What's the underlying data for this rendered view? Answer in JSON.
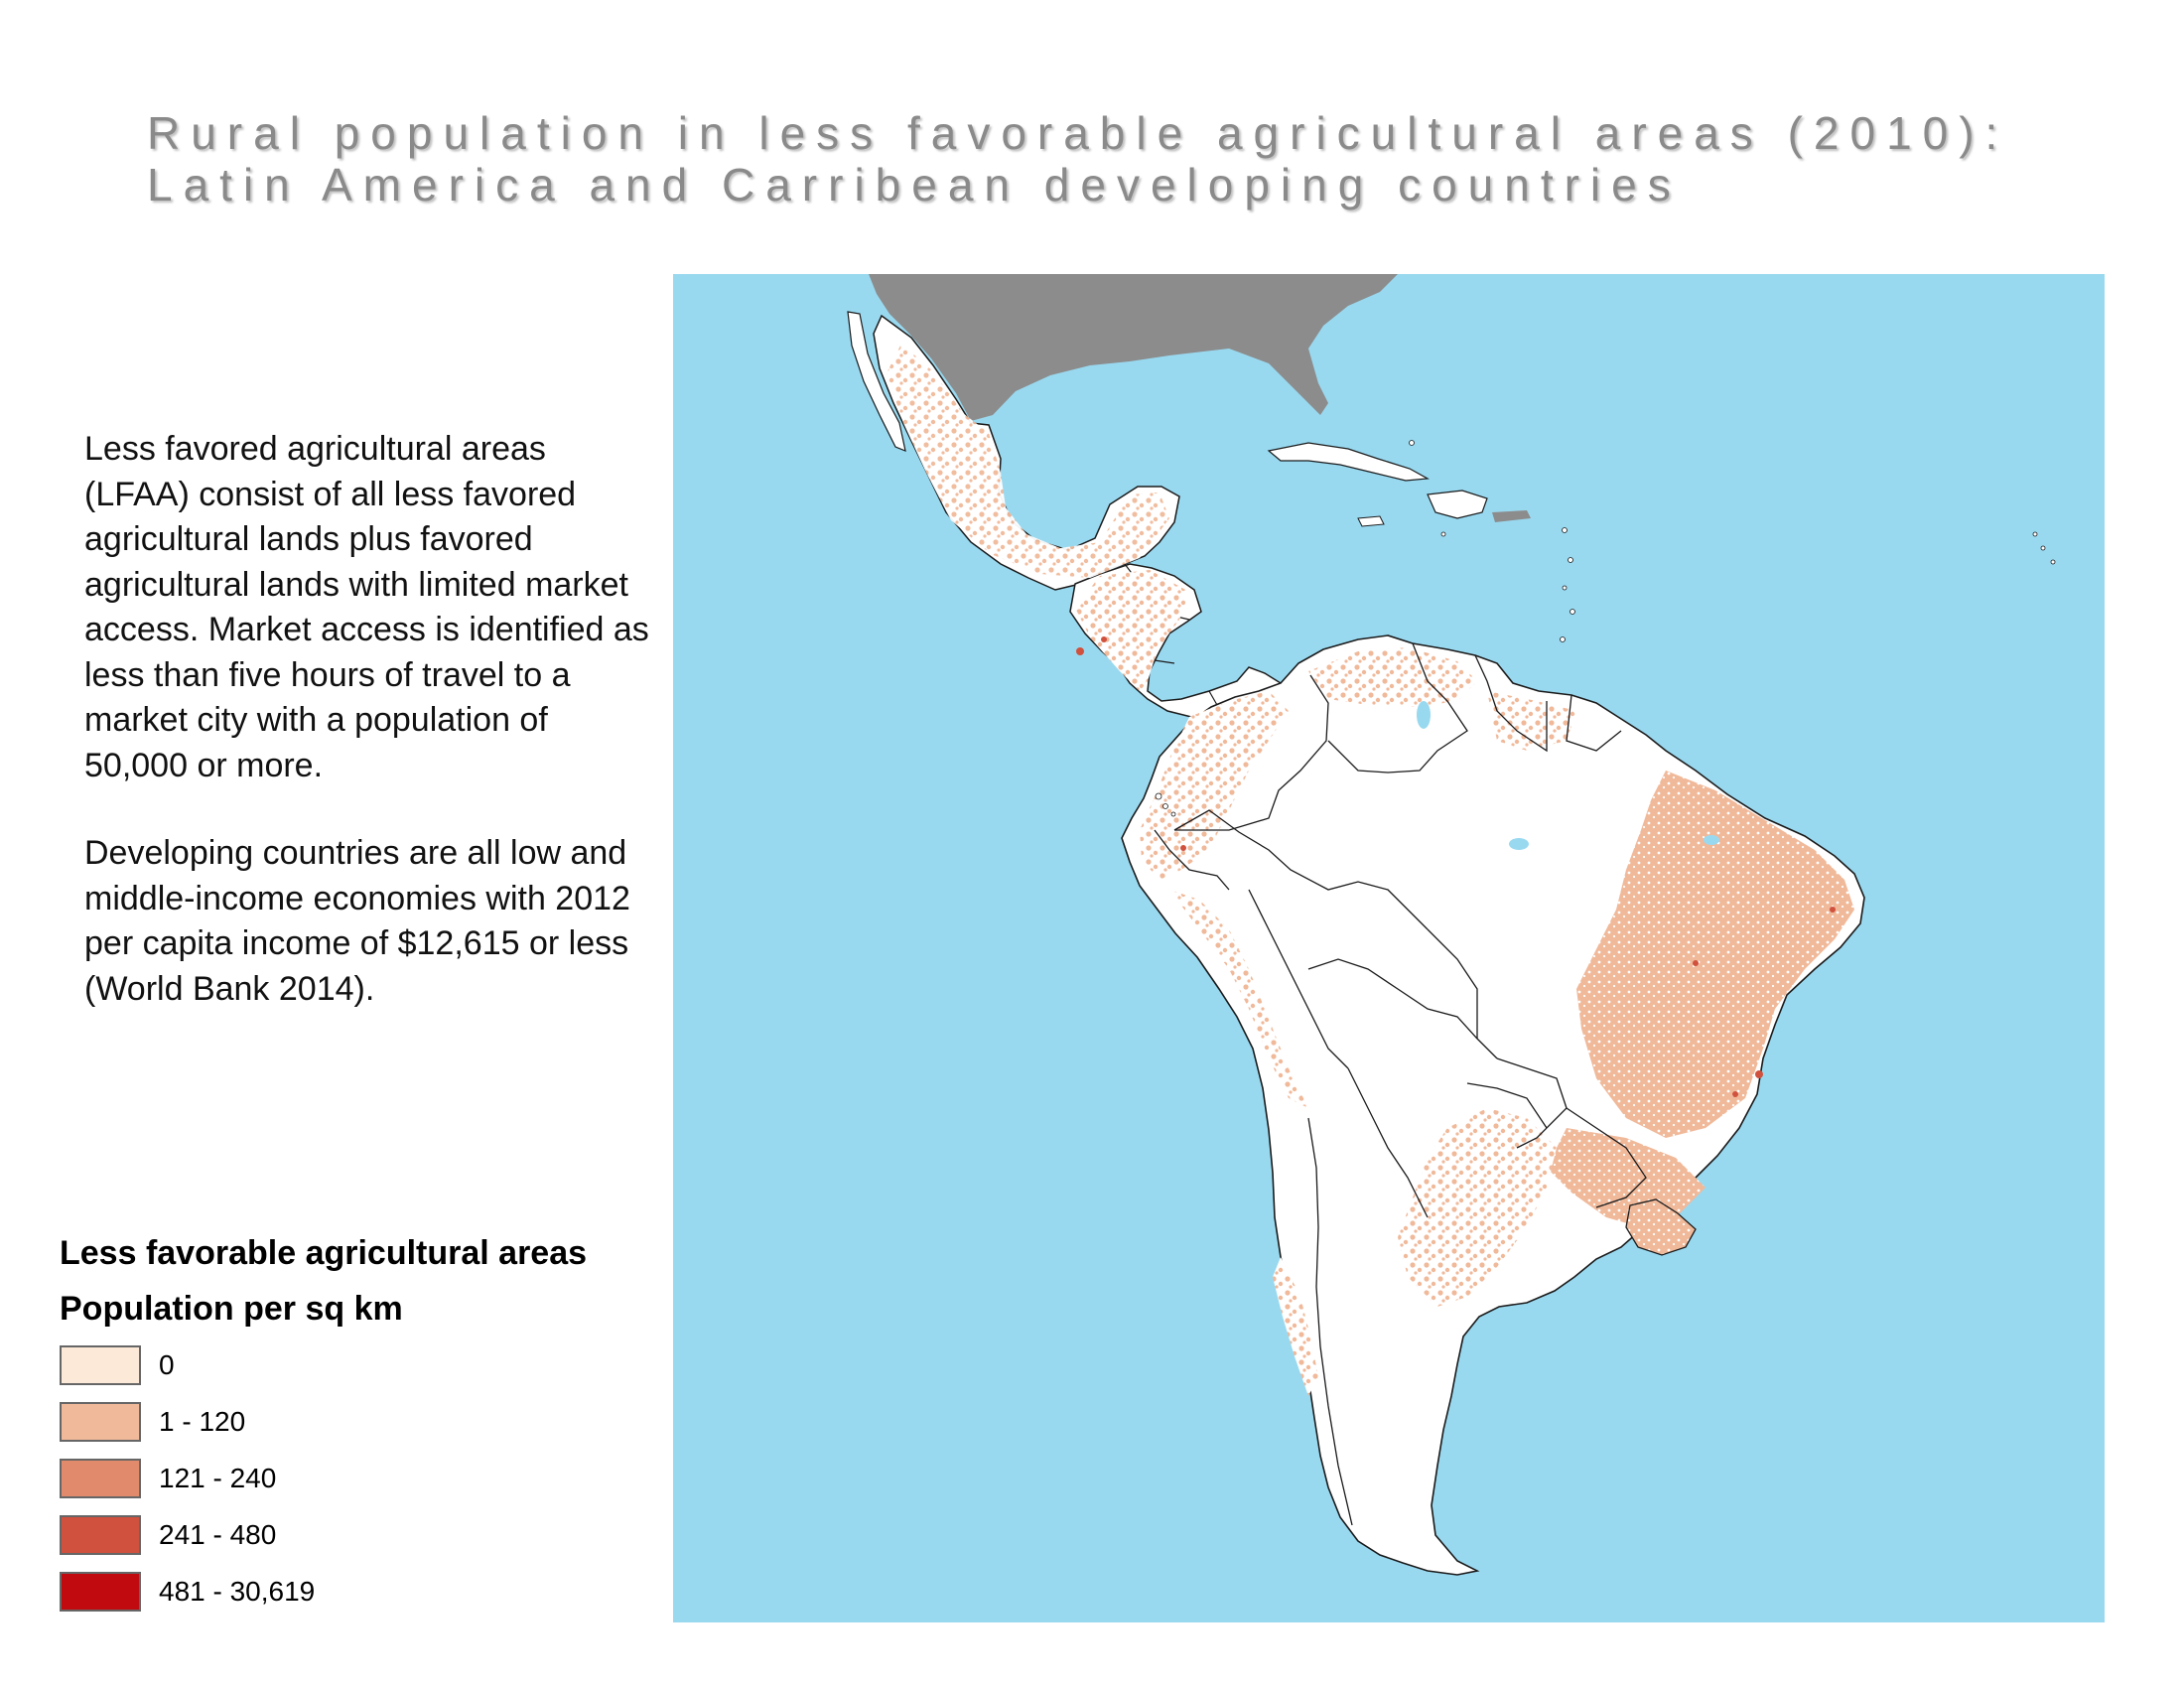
{
  "title": {
    "line1": "Rural population in less favorable agricultural areas (2010):",
    "line2": "Latin America and Carribean developing countries"
  },
  "description": {
    "paragraph1": "Less favored agricultural areas (LFAA) consist of all less favored agricultural lands plus favored agricultural lands with limited market access. Market access is identified as less than five hours of travel to a market city with a population of 50,000 or more.",
    "paragraph2_text": "Developing countries are all low and middle-income economies with 2012 per capita income of $12,615 or less",
    "paragraph2_citation": "(World Bank 2014)."
  },
  "legend": {
    "title": "Less favorable agricultural areas",
    "subtitle": "Population per sq km",
    "items": [
      {
        "label": "0",
        "color": "#fde9d8"
      },
      {
        "label": "1 - 120",
        "color": "#f0b99a"
      },
      {
        "label": "121 - 240",
        "color": "#e28b6c"
      },
      {
        "label": "241 - 480",
        "color": "#d0513d"
      },
      {
        "label": "481 - 30,619",
        "color": "#c00a10"
      }
    ]
  },
  "map": {
    "ocean_color": "#99d9f0",
    "land_color": "#ffffff",
    "non_study_land_color": "#8c8c8c",
    "lfaa_color": "#f0b99a",
    "high_density_color": "#d0513d",
    "border_color": "#1a1a1a",
    "lake_color": "#99d9f0"
  }
}
